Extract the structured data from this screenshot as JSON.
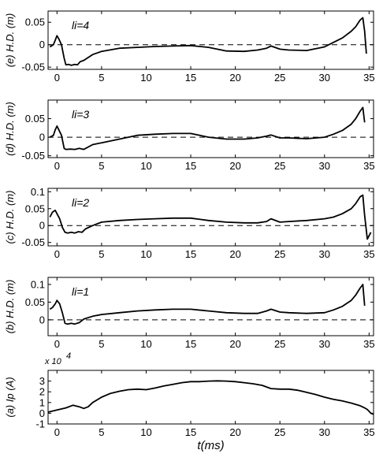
{
  "chart_data": [
    {
      "id": "e",
      "type": "line",
      "ylabel": "(e) H.D. (m)",
      "annotation": "li=4",
      "xlim": [
        -1,
        35.5
      ],
      "ylim": [
        -0.055,
        0.075
      ],
      "xticks": [
        0,
        5,
        10,
        15,
        20,
        25,
        30,
        35
      ],
      "yticks": [
        -0.05,
        0,
        0.05
      ],
      "ytick_labels": [
        "-0.05",
        "0",
        "0.05"
      ],
      "reference_line": 0,
      "x": [
        -0.8,
        -0.4,
        -0.2,
        0,
        0.2,
        0.5,
        0.8,
        1.0,
        1.3,
        1.6,
        2.0,
        2.3,
        2.6,
        3,
        4,
        5,
        7,
        9,
        11,
        13,
        15,
        17,
        19,
        21,
        22.5,
        23.5,
        24,
        25,
        26,
        28,
        30,
        31,
        32,
        33,
        33.5,
        34,
        34.3,
        34.5,
        34.7
      ],
      "y": [
        -0.005,
        0.0,
        0.01,
        0.02,
        0.013,
        0.0,
        -0.03,
        -0.045,
        -0.044,
        -0.046,
        -0.044,
        -0.045,
        -0.038,
        -0.035,
        -0.022,
        -0.015,
        -0.008,
        -0.006,
        -0.004,
        -0.003,
        -0.002,
        -0.006,
        -0.014,
        -0.015,
        -0.012,
        -0.008,
        -0.003,
        -0.01,
        -0.012,
        -0.013,
        -0.005,
        0.005,
        0.015,
        0.03,
        0.04,
        0.055,
        0.06,
        0.03,
        -0.02
      ]
    },
    {
      "id": "d",
      "type": "line",
      "ylabel": "(d) H.D. (m)",
      "annotation": "li=3",
      "xlim": [
        -1,
        35.5
      ],
      "ylim": [
        -0.055,
        0.1
      ],
      "xticks": [
        0,
        5,
        10,
        15,
        20,
        25,
        30,
        35
      ],
      "yticks": [
        -0.05,
        0,
        0.05
      ],
      "ytick_labels": [
        "-0.05",
        "0",
        "0.05"
      ],
      "reference_line": 0,
      "x": [
        -0.8,
        -0.4,
        -0.2,
        0,
        0.2,
        0.5,
        0.8,
        1.0,
        1.5,
        2.0,
        2.5,
        3,
        4,
        5,
        7,
        9,
        11,
        13,
        15,
        17,
        19,
        21,
        22.5,
        23.5,
        24,
        25,
        26,
        28,
        30,
        31,
        32,
        33,
        33.5,
        34,
        34.3,
        34.5
      ],
      "y": [
        0.0,
        0.005,
        0.02,
        0.03,
        0.02,
        0.005,
        -0.03,
        -0.033,
        -0.032,
        -0.033,
        -0.03,
        -0.033,
        -0.02,
        -0.015,
        -0.005,
        0.005,
        0.008,
        0.01,
        0.01,
        0.0,
        -0.005,
        -0.005,
        -0.002,
        0.003,
        0.006,
        -0.002,
        -0.002,
        -0.004,
        0.0,
        0.008,
        0.018,
        0.035,
        0.05,
        0.07,
        0.08,
        0.04
      ]
    },
    {
      "id": "c",
      "type": "line",
      "ylabel": "(c) H.D. (m)",
      "annotation": "li=2",
      "xlim": [
        -1,
        35.5
      ],
      "ylim": [
        -0.06,
        0.11
      ],
      "xticks": [
        0,
        5,
        10,
        15,
        20,
        25,
        30,
        35
      ],
      "yticks": [
        -0.05,
        0,
        0.05,
        0.1
      ],
      "ytick_labels": [
        "-0.05",
        "0",
        "0.05",
        "0.1"
      ],
      "reference_line": 0,
      "x": [
        -0.8,
        -0.5,
        -0.2,
        0,
        0.3,
        0.6,
        0.9,
        1.2,
        1.6,
        2.0,
        2.4,
        2.8,
        3.2,
        4,
        5,
        7,
        9,
        11,
        13,
        15,
        17,
        19,
        21,
        22.5,
        23.5,
        24,
        25,
        26,
        28,
        30,
        31,
        32,
        33,
        33.5,
        34,
        34.3,
        34.5,
        34.8,
        35.2
      ],
      "y": [
        0.025,
        0.04,
        0.045,
        0.035,
        0.02,
        -0.005,
        -0.02,
        -0.022,
        -0.02,
        -0.022,
        -0.018,
        -0.02,
        -0.01,
        0.0,
        0.01,
        0.015,
        0.018,
        0.02,
        0.022,
        0.022,
        0.015,
        0.01,
        0.008,
        0.008,
        0.012,
        0.02,
        0.01,
        0.012,
        0.015,
        0.02,
        0.025,
        0.035,
        0.05,
        0.065,
        0.085,
        0.09,
        0.03,
        -0.04,
        -0.02
      ]
    },
    {
      "id": "b",
      "type": "line",
      "ylabel": "(b) H.D. (m)",
      "annotation": "li=1",
      "xlim": [
        -1,
        35.5
      ],
      "ylim": [
        -0.045,
        0.12
      ],
      "xticks": [
        0,
        5,
        10,
        15,
        20,
        25,
        30,
        35
      ],
      "yticks": [
        0,
        0.05,
        0.1
      ],
      "ytick_labels": [
        "0",
        "0.05",
        "0.1"
      ],
      "reference_line": 0,
      "x": [
        -0.8,
        -0.5,
        -0.2,
        0,
        0.3,
        0.6,
        0.9,
        1.2,
        1.6,
        2.0,
        2.5,
        3,
        4,
        5,
        7,
        9,
        11,
        13,
        15,
        17,
        19,
        21,
        22.5,
        23.5,
        24,
        25,
        26,
        28,
        30,
        31,
        32,
        33,
        33.5,
        34,
        34.3,
        34.5
      ],
      "y": [
        0.03,
        0.035,
        0.045,
        0.055,
        0.045,
        0.02,
        -0.01,
        -0.012,
        -0.01,
        -0.012,
        -0.008,
        0.002,
        0.01,
        0.015,
        0.02,
        0.025,
        0.028,
        0.03,
        0.03,
        0.025,
        0.02,
        0.018,
        0.018,
        0.025,
        0.03,
        0.022,
        0.02,
        0.018,
        0.02,
        0.028,
        0.038,
        0.055,
        0.07,
        0.09,
        0.1,
        0.04
      ]
    },
    {
      "id": "a",
      "type": "line",
      "ylabel": "(a) Ip (A)",
      "exponent_label": "x 10",
      "exponent_power": "4",
      "xlabel": "t(ms)",
      "xlim": [
        -1,
        35.5
      ],
      "ylim": [
        -1,
        4
      ],
      "xticks": [
        0,
        5,
        10,
        15,
        20,
        25,
        30,
        35
      ],
      "yticks": [
        -1,
        0,
        1,
        2,
        3
      ],
      "ytick_labels": [
        "-1",
        "0",
        "1",
        "2",
        "3"
      ],
      "x": [
        -1,
        0,
        1,
        1.8,
        2.5,
        3,
        3.5,
        4,
        5,
        6,
        7,
        8,
        9,
        10,
        11,
        12,
        13,
        14,
        15,
        16,
        17,
        18,
        19,
        20,
        21,
        22,
        23,
        24,
        25,
        26,
        27,
        28,
        29,
        30,
        31,
        32,
        33,
        34,
        34.5,
        34.8,
        35.2,
        35.5
      ],
      "y": [
        0.1,
        0.3,
        0.5,
        0.75,
        0.6,
        0.45,
        0.6,
        1.0,
        1.5,
        1.85,
        2.05,
        2.2,
        2.25,
        2.2,
        2.35,
        2.55,
        2.7,
        2.85,
        2.95,
        2.95,
        3.0,
        3.02,
        3.0,
        2.95,
        2.85,
        2.75,
        2.6,
        2.3,
        2.25,
        2.25,
        2.15,
        1.95,
        1.75,
        1.5,
        1.3,
        1.15,
        0.95,
        0.7,
        0.5,
        0.35,
        0.0,
        -0.1
      ]
    }
  ]
}
